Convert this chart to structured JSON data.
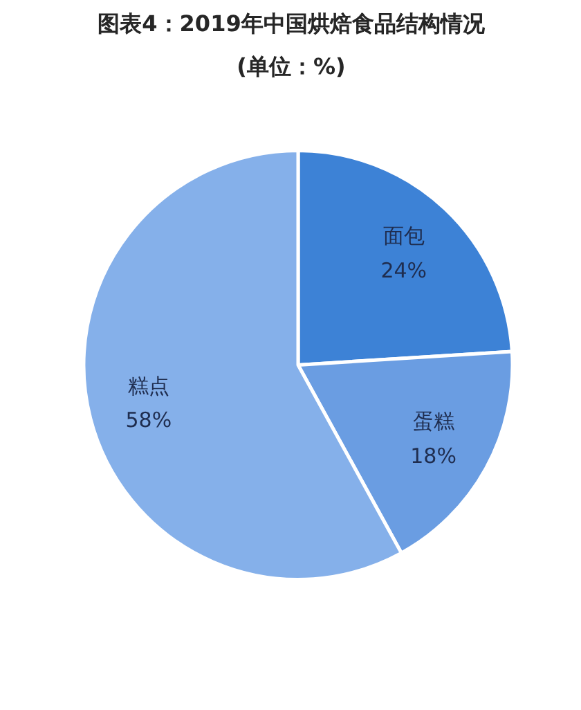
{
  "chart_data": {
    "type": "pie",
    "title": "图表4：2019年中国烘焙食品结构情况",
    "subtitle": "(单位：%)",
    "categories": [
      "面包",
      "蛋糕",
      "糕点"
    ],
    "values": [
      24,
      18,
      58
    ],
    "colors": [
      "#3d82d6",
      "#6a9de2",
      "#85b0ea"
    ],
    "value_labels": [
      "24%",
      "18%",
      "58%"
    ]
  }
}
